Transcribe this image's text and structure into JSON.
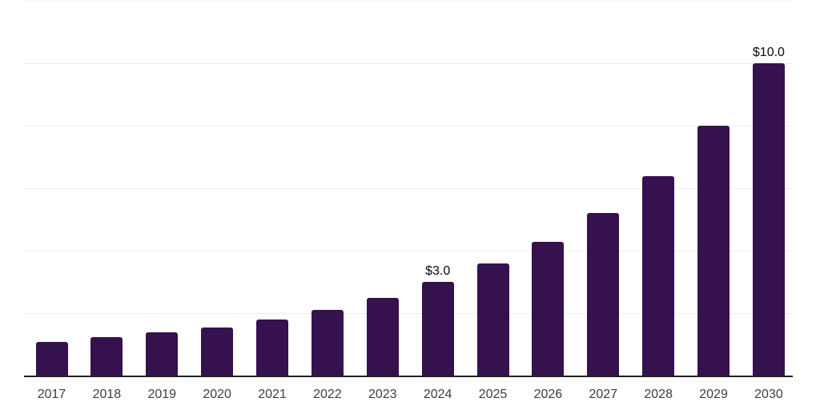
{
  "chart_data": {
    "type": "bar",
    "categories": [
      "2017",
      "2018",
      "2019",
      "2020",
      "2021",
      "2022",
      "2023",
      "2024",
      "2025",
      "2026",
      "2027",
      "2028",
      "2029",
      "2030"
    ],
    "values": [
      1.1,
      1.25,
      1.4,
      1.55,
      1.8,
      2.1,
      2.5,
      3.0,
      3.6,
      4.3,
      5.2,
      6.4,
      8.0,
      10.0
    ],
    "annotations": [
      {
        "category": "2024",
        "text": "$3.0"
      },
      {
        "category": "2030",
        "text": "$10.0"
      }
    ],
    "bar_color": "#35114d",
    "axis_line_color": "#222222",
    "gridline_color": "#ededed",
    "tick_label_color": "#3d3d3d",
    "annotation_color": "#0a0a0a",
    "ylim": [
      0,
      12
    ],
    "gridline_step": 2,
    "grid": "horizontal",
    "legend": "none",
    "y_axis_labels": "none"
  }
}
